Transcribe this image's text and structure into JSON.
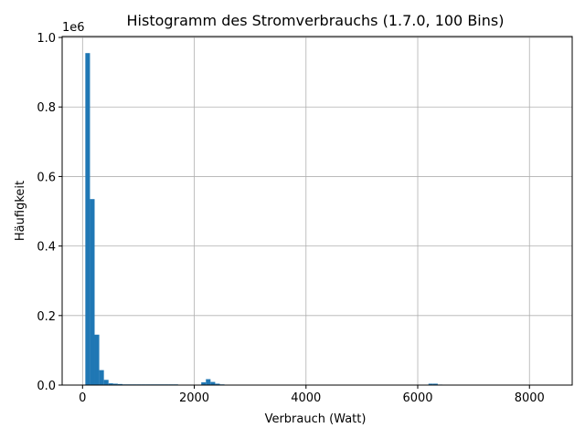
{
  "chart_data": {
    "type": "histogram",
    "title": "Histogramm des Stromverbrauchs (1.7.0, 100 Bins)",
    "x_label": "Verbrauch (Watt)",
    "y_label": "Häufigkeit",
    "y_offset_label": "1e6",
    "color": "#1f77b4",
    "grid": true,
    "bins": [
      50,
      133,
      216,
      299,
      382,
      465,
      548,
      631,
      714,
      797,
      880,
      963,
      1046,
      1129,
      1212,
      1295,
      1378,
      1461,
      1544,
      1627,
      1710,
      1793,
      1876,
      1959,
      2042,
      2125,
      2208,
      2291,
      2374,
      2457,
      2540,
      2623,
      2706,
      2789,
      2872,
      2955,
      3038,
      3121,
      3204,
      3287,
      3370,
      3453,
      3536,
      3619,
      3702,
      3785,
      3868,
      3951,
      4034,
      4117,
      4200,
      4283,
      4366,
      4449,
      4532,
      4615,
      4698,
      4781,
      4864,
      4947,
      5030,
      5113,
      5196,
      5279,
      5362,
      5445,
      5528,
      5611,
      5694,
      5777,
      5860,
      5943,
      6026,
      6109,
      6192,
      6275,
      6358,
      6441,
      6524,
      6607,
      6690,
      6773,
      6856,
      6939,
      7022,
      7105,
      7188,
      7271,
      7354,
      7437,
      7520,
      7603,
      7686,
      7769,
      7852,
      7935,
      8018,
      8101,
      8184,
      8267,
      8350
    ],
    "values": [
      955000,
      535000,
      145000,
      43000,
      15000,
      5000,
      4000,
      3000,
      2000,
      2000,
      2000,
      2000,
      2000,
      2000,
      2000,
      2000,
      2000,
      2000,
      2000,
      2000,
      0,
      0,
      0,
      0,
      0,
      8000,
      17000,
      9000,
      4000,
      2000,
      0,
      0,
      0,
      0,
      0,
      0,
      0,
      0,
      0,
      0,
      0,
      0,
      0,
      0,
      0,
      0,
      0,
      0,
      0,
      0,
      0,
      0,
      0,
      0,
      0,
      0,
      0,
      0,
      0,
      0,
      0,
      0,
      0,
      0,
      0,
      0,
      0,
      0,
      0,
      0,
      0,
      0,
      0,
      0,
      4000,
      4000,
      1500,
      0,
      0,
      0,
      0,
      0,
      0,
      0,
      0,
      0,
      0,
      0,
      0,
      0,
      0,
      0,
      0,
      0,
      0,
      0,
      0,
      0,
      0,
      1
    ],
    "xlim": [
      -365,
      8765
    ],
    "xticks": [
      0,
      2000,
      4000,
      6000,
      8000
    ],
    "ylim": [
      0,
      1002750
    ],
    "yticks": [
      {
        "value": 0,
        "label": "0.0"
      },
      {
        "value": 200000,
        "label": "0.2"
      },
      {
        "value": 400000,
        "label": "0.4"
      },
      {
        "value": 600000,
        "label": "0.6"
      },
      {
        "value": 800000,
        "label": "0.8"
      },
      {
        "value": 1000000,
        "label": "1.0"
      }
    ]
  }
}
